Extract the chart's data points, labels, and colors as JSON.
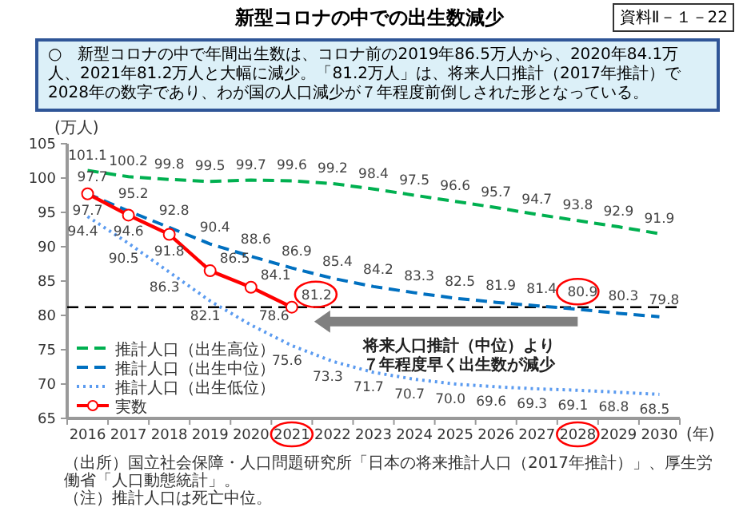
{
  "chart_data": {
    "type": "line",
    "title": "新型コロナの中での出生数減少",
    "subtitle": "○　新型コロナの中で年間出生数は、コロナ前の2019年86.5万人から、2020年84.1万人、2021年81.2万人と大幅に減少。「81.2万人」は、将来人口推計（2017年推計）で2028年の数字であり、わが国の人口減少が７年程度前倒しされた形となっている。",
    "ylabel": "(万人)",
    "xlabel": "(年)",
    "categories": [
      "2016",
      "2017",
      "2018",
      "2019",
      "2020",
      "2021",
      "2022",
      "2023",
      "2024",
      "2025",
      "2026",
      "2027",
      "2028",
      "2029",
      "2030"
    ],
    "ylim": [
      65,
      105
    ],
    "yticks": [
      65,
      70,
      75,
      80,
      85,
      90,
      95,
      100,
      105
    ],
    "grid": false,
    "legend": "bottom left",
    "series": [
      {
        "name": "推計人口（出生高位）",
        "color": "#00b050",
        "line_style": "dashed",
        "marker": "none",
        "values": [
          101.1,
          100.2,
          99.8,
          99.5,
          99.7,
          99.6,
          99.2,
          98.4,
          97.5,
          96.6,
          95.7,
          94.7,
          93.8,
          92.9,
          91.9
        ],
        "value_labels": [
          "101.1",
          "100.2",
          "99.8",
          "99.5",
          "99.7",
          "99.6",
          "99.2",
          "98.4",
          "97.5",
          "96.6",
          "95.7",
          "94.7",
          "93.8",
          "92.9",
          "91.9"
        ]
      },
      {
        "name": "推計人口（出生中位）",
        "color": "#0070c0",
        "line_style": "dashed",
        "marker": "none",
        "values": [
          97.7,
          95.2,
          92.8,
          90.4,
          88.6,
          86.9,
          85.4,
          84.2,
          83.3,
          82.5,
          81.9,
          81.4,
          80.9,
          80.3,
          79.8
        ],
        "value_labels": [
          "97.7",
          "95.2",
          "92.8",
          "90.4",
          "88.6",
          "86.9",
          "85.4",
          "84.2",
          "83.3",
          "82.5",
          "81.9",
          "81.4",
          "80.9",
          "80.3",
          "79.8"
        ]
      },
      {
        "name": "推計人口（出生低位）",
        "color": "#5b9bf0",
        "line_style": "dotted",
        "marker": "none",
        "values": [
          94.4,
          90.5,
          86.3,
          82.1,
          78.6,
          75.6,
          73.3,
          71.7,
          70.7,
          70.0,
          69.6,
          69.3,
          69.1,
          68.8,
          68.5
        ],
        "value_labels": [
          "94.4",
          "90.5",
          "86.3",
          "82.1",
          "78.6",
          "75.6",
          "73.3",
          "71.7",
          "70.7",
          "70.0",
          "69.6",
          "69.3",
          "69.1",
          "68.8",
          "68.5"
        ]
      },
      {
        "name": "実数",
        "color": "#ff0000",
        "line_style": "solid",
        "marker": "circle",
        "values": [
          97.7,
          94.6,
          91.8,
          86.5,
          84.1,
          81.2,
          null,
          null,
          null,
          null,
          null,
          null,
          null,
          null,
          null
        ],
        "value_labels": [
          "97.7",
          "94.6",
          "91.8",
          "86.5",
          "84.1",
          "81.2",
          null,
          null,
          null,
          null,
          null,
          null,
          null,
          null,
          null
        ]
      }
    ],
    "ref_lines": [
      {
        "axis": "y",
        "value": 81.2,
        "color": "#000000",
        "line_style": "dashed"
      }
    ],
    "annotations": [
      "資料Ⅱ－１－22",
      "将来人口推計（中位）より",
      "７年程度早く出生数が減少",
      "（出所）国立社会保障・人口問題研究所「日本の将来推計人口（2017年推計）」、厚生労働省「人口動態統計」。",
      "（注）推計人口は死亡中位。"
    ]
  }
}
